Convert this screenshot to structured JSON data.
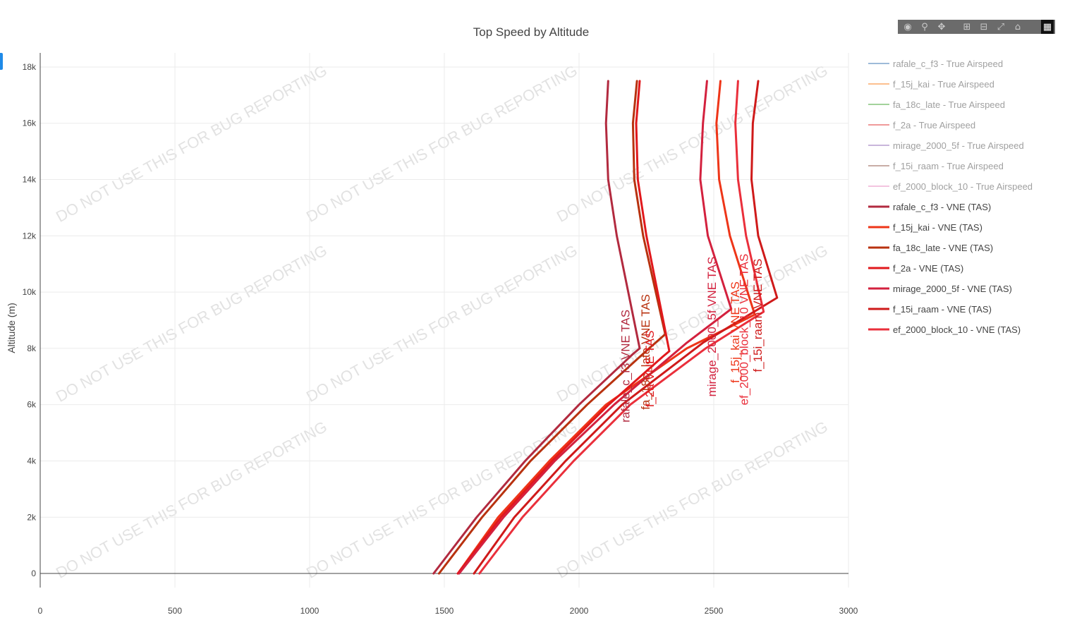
{
  "modebar": {
    "icons": [
      "camera-icon",
      "zoom-icon",
      "pan-icon",
      "zoom-in-icon",
      "zoom-out-icon",
      "autoscale-icon",
      "reset-home-icon",
      "plotly-logo-icon"
    ]
  },
  "watermark": "DO NOT USE THIS FOR BUG REPORTING",
  "chart_data": {
    "type": "line",
    "title": "Top Speed by Altitude",
    "xlabel": "",
    "ylabel": "Altitude (m)",
    "xlim": [
      0,
      3000
    ],
    "ylim": [
      -500,
      18500
    ],
    "x_ticks": [
      0,
      500,
      1000,
      1500,
      2000,
      2500,
      3000
    ],
    "x_tick_labels": [
      "0",
      "500",
      "1000",
      "1500",
      "2000",
      "2500",
      "3000"
    ],
    "y_ticks": [
      0,
      2000,
      4000,
      6000,
      8000,
      10000,
      12000,
      14000,
      16000,
      18000
    ],
    "y_tick_labels": [
      "0",
      "2k",
      "4k",
      "6k",
      "8k",
      "10k",
      "12k",
      "14k",
      "16k",
      "18k"
    ],
    "grid": true,
    "legend_position": "right",
    "series": [
      {
        "name": "rafale_c_f3 - True Airspeed",
        "color": "#9dbbd9",
        "faded": true,
        "x": [],
        "y": []
      },
      {
        "name": "f_15j_kai - True Airspeed",
        "color": "#fcc08f",
        "faded": true,
        "x": [],
        "y": []
      },
      {
        "name": "fa_18c_late - True Airspeed",
        "color": "#a3d29b",
        "faded": true,
        "x": [],
        "y": []
      },
      {
        "name": "f_2a - True Airspeed",
        "color": "#f09a9a",
        "faded": true,
        "x": [],
        "y": []
      },
      {
        "name": "mirage_2000_5f - True Airspeed",
        "color": "#c9b6db",
        "faded": true,
        "x": [],
        "y": []
      },
      {
        "name": "f_15i_raam - True Airspeed",
        "color": "#c9ada6",
        "faded": true,
        "x": [],
        "y": []
      },
      {
        "name": "ef_2000_block_10 - True Airspeed",
        "color": "#f3c4e0",
        "faded": true,
        "x": [],
        "y": []
      },
      {
        "name": "rafale_c_f3 - VNE (TAS)",
        "color": "#b22a3f",
        "faded": false,
        "label": "rafale_c_f3 VNE TAS",
        "label_at": [
          2245,
          8000
        ],
        "x": [
          1460,
          1620,
          1800,
          2000,
          2200,
          2225,
          2140,
          2108,
          2100,
          2108
        ],
        "y": [
          0,
          2000,
          4000,
          6000,
          7800,
          8000,
          12000,
          14000,
          16000,
          17500
        ]
      },
      {
        "name": "f_15j_kai - VNE (TAS)",
        "color": "#ee3518",
        "faded": false,
        "label": "f_15j_kai VNE TAS",
        "label_at": [
          2652,
          9200
        ],
        "x": [
          1550,
          1700,
          1890,
          2100,
          2400,
          2652,
          2560,
          2520,
          2510,
          2525
        ],
        "y": [
          0,
          2000,
          4000,
          6000,
          8000,
          9200,
          12000,
          14000,
          16000,
          17500
        ]
      },
      {
        "name": "fa_18c_late - VNE (TAS)",
        "color": "#b8320f",
        "faded": false,
        "label": "fa_18c_late VNE TAS",
        "label_at": [
          2320,
          8500
        ],
        "x": [
          1480,
          1640,
          1820,
          2030,
          2260,
          2320,
          2238,
          2205,
          2200,
          2215
        ],
        "y": [
          0,
          2000,
          4000,
          6000,
          8000,
          8500,
          12000,
          14000,
          16000,
          17500
        ]
      },
      {
        "name": "f_2a - VNE (TAS)",
        "color": "#e1181c",
        "faded": false,
        "label": "f_2a VNE TAS",
        "label_at": [
          2335,
          7900
        ],
        "x": [
          1550,
          1710,
          1900,
          2110,
          2310,
          2335,
          2250,
          2218,
          2212,
          2225
        ],
        "y": [
          0,
          2000,
          4000,
          6000,
          7700,
          7900,
          12000,
          14000,
          16000,
          17500
        ]
      },
      {
        "name": "mirage_2000_5f - VNE (TAS)",
        "color": "#d3213e",
        "faded": false,
        "label": "mirage_2000_5f VNE TAS",
        "label_at": [
          2565,
          9400
        ],
        "x": [
          1555,
          1720,
          1910,
          2130,
          2400,
          2565,
          2478,
          2450,
          2460,
          2475
        ],
        "y": [
          0,
          2000,
          4000,
          6000,
          8200,
          9400,
          12000,
          14000,
          16000,
          17500
        ]
      },
      {
        "name": "f_15i_raam - VNE (TAS)",
        "color": "#cf1a1a",
        "faded": false,
        "label": "f_15i_raam VNE TAS",
        "label_at": [
          2735,
          9800
        ],
        "x": [
          1610,
          1760,
          1950,
          2160,
          2460,
          2735,
          2665,
          2640,
          2645,
          2665
        ],
        "y": [
          0,
          2000,
          4000,
          6000,
          8200,
          9800,
          12000,
          14000,
          16000,
          17500
        ]
      },
      {
        "name": "ef_2000_block_10 - VNE (TAS)",
        "color": "#ea2f3b",
        "faded": false,
        "label": "ef_2000_block_10 VNE TAS",
        "label_at": [
          2685,
          9300
        ],
        "x": [
          1630,
          1790,
          1980,
          2190,
          2470,
          2685,
          2620,
          2590,
          2580,
          2590
        ],
        "y": [
          0,
          2000,
          4000,
          6000,
          8000,
          9300,
          12000,
          14000,
          16000,
          17500
        ]
      }
    ]
  }
}
